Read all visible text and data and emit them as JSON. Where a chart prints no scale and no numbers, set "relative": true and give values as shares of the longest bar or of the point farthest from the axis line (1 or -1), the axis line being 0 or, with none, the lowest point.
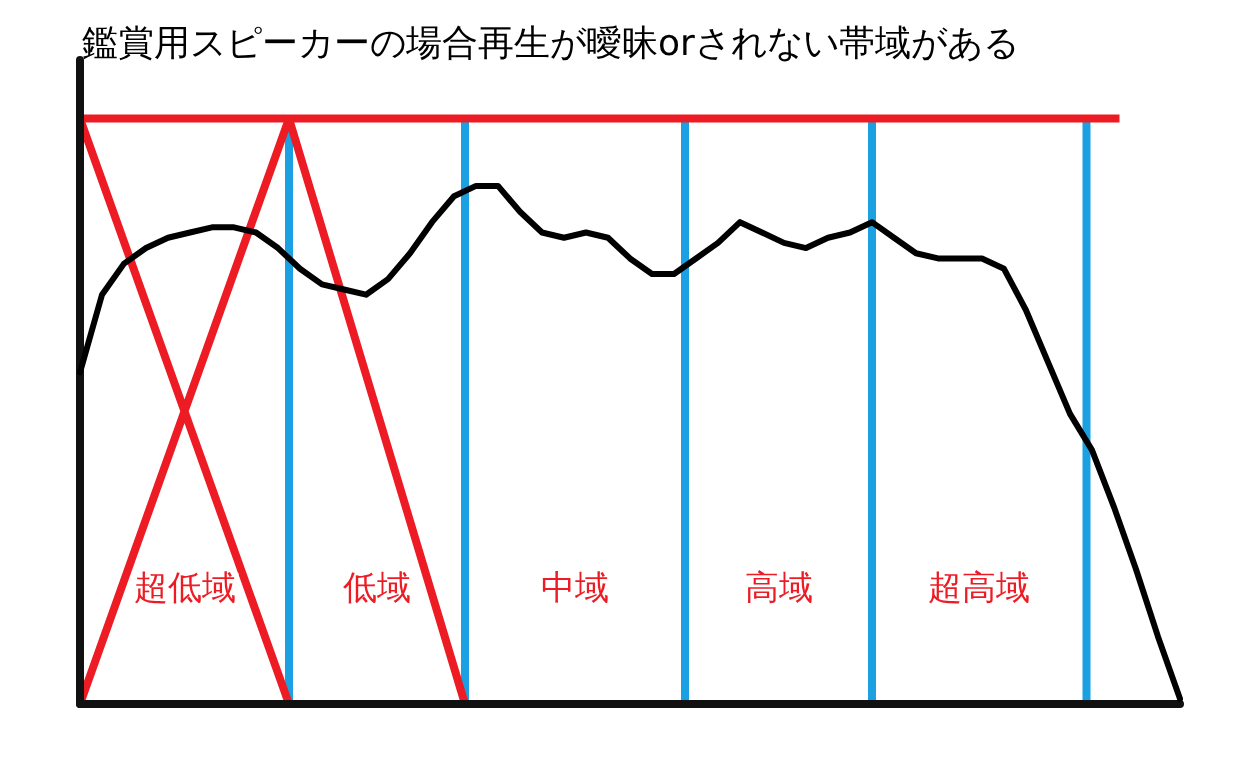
{
  "chart_data": {
    "type": "line",
    "title": "鑑賞用スピーカーの場合再生が曖昧orされない帯域がある",
    "relative": true,
    "grid": false,
    "marker": "none",
    "line_style": "solid",
    "categories": [
      null,
      null,
      null,
      null,
      null,
      null,
      null,
      null,
      null,
      null,
      null,
      null,
      null,
      null,
      null,
      null,
      null,
      null,
      null,
      null,
      null,
      null,
      null,
      null,
      null,
      null,
      null,
      null,
      null,
      null,
      null,
      null,
      null,
      null,
      null,
      null,
      null,
      null,
      null,
      null,
      null,
      null,
      null,
      null,
      null,
      null,
      null,
      null,
      null,
      null,
      null
    ],
    "series": [
      {
        "color": "#000000",
        "values": [
          0.64,
          0.79,
          0.85,
          0.88,
          0.9,
          0.91,
          0.92,
          0.92,
          0.91,
          0.88,
          0.84,
          0.81,
          0.8,
          0.79,
          0.82,
          0.87,
          0.93,
          0.98,
          1,
          1,
          0.95,
          0.91,
          0.9,
          0.91,
          0.9,
          0.86,
          0.83,
          0.83,
          0.86,
          0.89,
          0.93,
          0.91,
          0.89,
          0.88,
          0.9,
          0.91,
          0.93,
          0.9,
          0.87,
          0.86,
          0.86,
          0.86,
          0.84,
          0.76,
          0.66,
          0.56,
          0.49,
          0.38,
          0.26,
          0.13,
          0.01
        ]
      }
    ],
    "annotations": [
      "超低域",
      "低域",
      "中域",
      "高域",
      "超高域"
    ]
  }
}
